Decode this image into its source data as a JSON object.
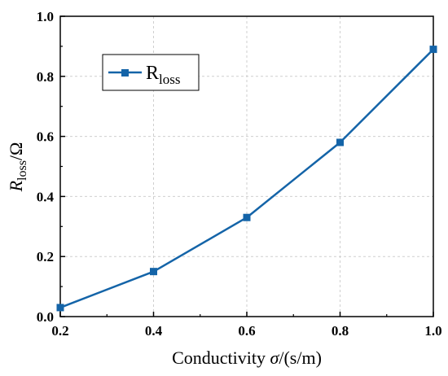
{
  "chart_data": {
    "type": "line",
    "x": [
      0.2,
      0.4,
      0.6,
      0.8,
      1.0
    ],
    "series": [
      {
        "name": "R",
        "name_subscript": "loss",
        "values": [
          0.03,
          0.15,
          0.33,
          0.58,
          0.89
        ],
        "color": "#1464a8",
        "marker": "square"
      }
    ],
    "xlabel": "Conductivity σ/(s/m)",
    "xlabel_parts": {
      "prefix": "Conductivity ",
      "symbol": "σ",
      "suffix": "/(s/m)"
    },
    "ylabel_parts": {
      "symbol": "R",
      "subscript": "loss",
      "suffix": "/Ω"
    },
    "xlim": [
      0.2,
      1.0
    ],
    "ylim": [
      0.0,
      1.0
    ],
    "xticks": [
      "0.2",
      "0.4",
      "0.6",
      "0.8",
      "1.0"
    ],
    "yticks": [
      "0.0",
      "0.2",
      "0.4",
      "0.6",
      "0.8",
      "1.0"
    ],
    "grid": true,
    "legend_position": "top-left"
  }
}
